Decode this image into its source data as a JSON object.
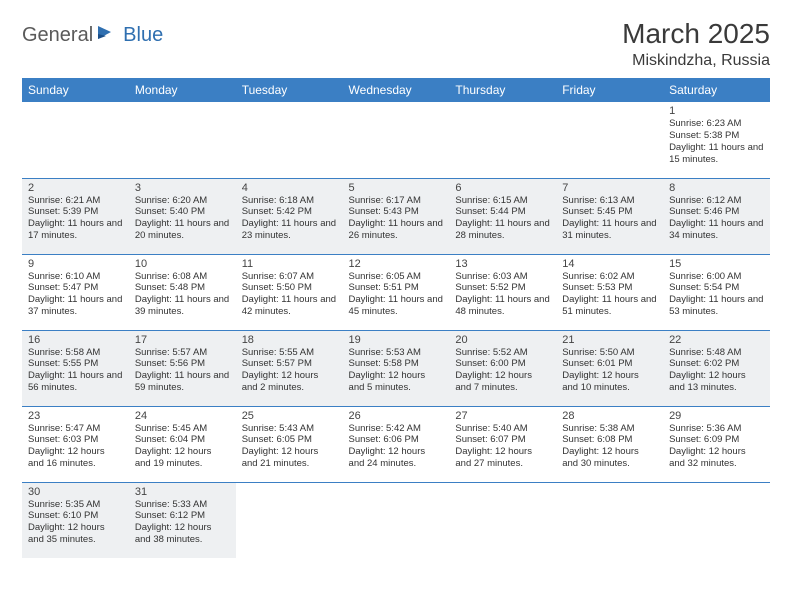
{
  "brand": {
    "part1": "General",
    "part2": "Blue"
  },
  "title": "March 2025",
  "location": "Miskindzha, Russia",
  "colors": {
    "header_bg": "#3b7fc4",
    "header_text": "#ffffff",
    "shaded_bg": "#eef0f2",
    "border": "#3b7fc4",
    "brand_gray": "#5a5a5a",
    "brand_blue": "#2f6fb0"
  },
  "weekdays": [
    "Sunday",
    "Monday",
    "Tuesday",
    "Wednesday",
    "Thursday",
    "Friday",
    "Saturday"
  ],
  "weeks": [
    [
      null,
      null,
      null,
      null,
      null,
      null,
      {
        "n": "1",
        "sr": "Sunrise: 6:23 AM",
        "ss": "Sunset: 5:38 PM",
        "dl": "Daylight: 11 hours and 15 minutes.",
        "sh": false
      }
    ],
    [
      {
        "n": "2",
        "sr": "Sunrise: 6:21 AM",
        "ss": "Sunset: 5:39 PM",
        "dl": "Daylight: 11 hours and 17 minutes.",
        "sh": true
      },
      {
        "n": "3",
        "sr": "Sunrise: 6:20 AM",
        "ss": "Sunset: 5:40 PM",
        "dl": "Daylight: 11 hours and 20 minutes.",
        "sh": true
      },
      {
        "n": "4",
        "sr": "Sunrise: 6:18 AM",
        "ss": "Sunset: 5:42 PM",
        "dl": "Daylight: 11 hours and 23 minutes.",
        "sh": true
      },
      {
        "n": "5",
        "sr": "Sunrise: 6:17 AM",
        "ss": "Sunset: 5:43 PM",
        "dl": "Daylight: 11 hours and 26 minutes.",
        "sh": true
      },
      {
        "n": "6",
        "sr": "Sunrise: 6:15 AM",
        "ss": "Sunset: 5:44 PM",
        "dl": "Daylight: 11 hours and 28 minutes.",
        "sh": true
      },
      {
        "n": "7",
        "sr": "Sunrise: 6:13 AM",
        "ss": "Sunset: 5:45 PM",
        "dl": "Daylight: 11 hours and 31 minutes.",
        "sh": true
      },
      {
        "n": "8",
        "sr": "Sunrise: 6:12 AM",
        "ss": "Sunset: 5:46 PM",
        "dl": "Daylight: 11 hours and 34 minutes.",
        "sh": true
      }
    ],
    [
      {
        "n": "9",
        "sr": "Sunrise: 6:10 AM",
        "ss": "Sunset: 5:47 PM",
        "dl": "Daylight: 11 hours and 37 minutes.",
        "sh": false
      },
      {
        "n": "10",
        "sr": "Sunrise: 6:08 AM",
        "ss": "Sunset: 5:48 PM",
        "dl": "Daylight: 11 hours and 39 minutes.",
        "sh": false
      },
      {
        "n": "11",
        "sr": "Sunrise: 6:07 AM",
        "ss": "Sunset: 5:50 PM",
        "dl": "Daylight: 11 hours and 42 minutes.",
        "sh": false
      },
      {
        "n": "12",
        "sr": "Sunrise: 6:05 AM",
        "ss": "Sunset: 5:51 PM",
        "dl": "Daylight: 11 hours and 45 minutes.",
        "sh": false
      },
      {
        "n": "13",
        "sr": "Sunrise: 6:03 AM",
        "ss": "Sunset: 5:52 PM",
        "dl": "Daylight: 11 hours and 48 minutes.",
        "sh": false
      },
      {
        "n": "14",
        "sr": "Sunrise: 6:02 AM",
        "ss": "Sunset: 5:53 PM",
        "dl": "Daylight: 11 hours and 51 minutes.",
        "sh": false
      },
      {
        "n": "15",
        "sr": "Sunrise: 6:00 AM",
        "ss": "Sunset: 5:54 PM",
        "dl": "Daylight: 11 hours and 53 minutes.",
        "sh": false
      }
    ],
    [
      {
        "n": "16",
        "sr": "Sunrise: 5:58 AM",
        "ss": "Sunset: 5:55 PM",
        "dl": "Daylight: 11 hours and 56 minutes.",
        "sh": true
      },
      {
        "n": "17",
        "sr": "Sunrise: 5:57 AM",
        "ss": "Sunset: 5:56 PM",
        "dl": "Daylight: 11 hours and 59 minutes.",
        "sh": true
      },
      {
        "n": "18",
        "sr": "Sunrise: 5:55 AM",
        "ss": "Sunset: 5:57 PM",
        "dl": "Daylight: 12 hours and 2 minutes.",
        "sh": true
      },
      {
        "n": "19",
        "sr": "Sunrise: 5:53 AM",
        "ss": "Sunset: 5:58 PM",
        "dl": "Daylight: 12 hours and 5 minutes.",
        "sh": true
      },
      {
        "n": "20",
        "sr": "Sunrise: 5:52 AM",
        "ss": "Sunset: 6:00 PM",
        "dl": "Daylight: 12 hours and 7 minutes.",
        "sh": true
      },
      {
        "n": "21",
        "sr": "Sunrise: 5:50 AM",
        "ss": "Sunset: 6:01 PM",
        "dl": "Daylight: 12 hours and 10 minutes.",
        "sh": true
      },
      {
        "n": "22",
        "sr": "Sunrise: 5:48 AM",
        "ss": "Sunset: 6:02 PM",
        "dl": "Daylight: 12 hours and 13 minutes.",
        "sh": true
      }
    ],
    [
      {
        "n": "23",
        "sr": "Sunrise: 5:47 AM",
        "ss": "Sunset: 6:03 PM",
        "dl": "Daylight: 12 hours and 16 minutes.",
        "sh": false
      },
      {
        "n": "24",
        "sr": "Sunrise: 5:45 AM",
        "ss": "Sunset: 6:04 PM",
        "dl": "Daylight: 12 hours and 19 minutes.",
        "sh": false
      },
      {
        "n": "25",
        "sr": "Sunrise: 5:43 AM",
        "ss": "Sunset: 6:05 PM",
        "dl": "Daylight: 12 hours and 21 minutes.",
        "sh": false
      },
      {
        "n": "26",
        "sr": "Sunrise: 5:42 AM",
        "ss": "Sunset: 6:06 PM",
        "dl": "Daylight: 12 hours and 24 minutes.",
        "sh": false
      },
      {
        "n": "27",
        "sr": "Sunrise: 5:40 AM",
        "ss": "Sunset: 6:07 PM",
        "dl": "Daylight: 12 hours and 27 minutes.",
        "sh": false
      },
      {
        "n": "28",
        "sr": "Sunrise: 5:38 AM",
        "ss": "Sunset: 6:08 PM",
        "dl": "Daylight: 12 hours and 30 minutes.",
        "sh": false
      },
      {
        "n": "29",
        "sr": "Sunrise: 5:36 AM",
        "ss": "Sunset: 6:09 PM",
        "dl": "Daylight: 12 hours and 32 minutes.",
        "sh": false
      }
    ],
    [
      {
        "n": "30",
        "sr": "Sunrise: 5:35 AM",
        "ss": "Sunset: 6:10 PM",
        "dl": "Daylight: 12 hours and 35 minutes.",
        "sh": true
      },
      {
        "n": "31",
        "sr": "Sunrise: 5:33 AM",
        "ss": "Sunset: 6:12 PM",
        "dl": "Daylight: 12 hours and 38 minutes.",
        "sh": true
      },
      null,
      null,
      null,
      null,
      null
    ]
  ]
}
